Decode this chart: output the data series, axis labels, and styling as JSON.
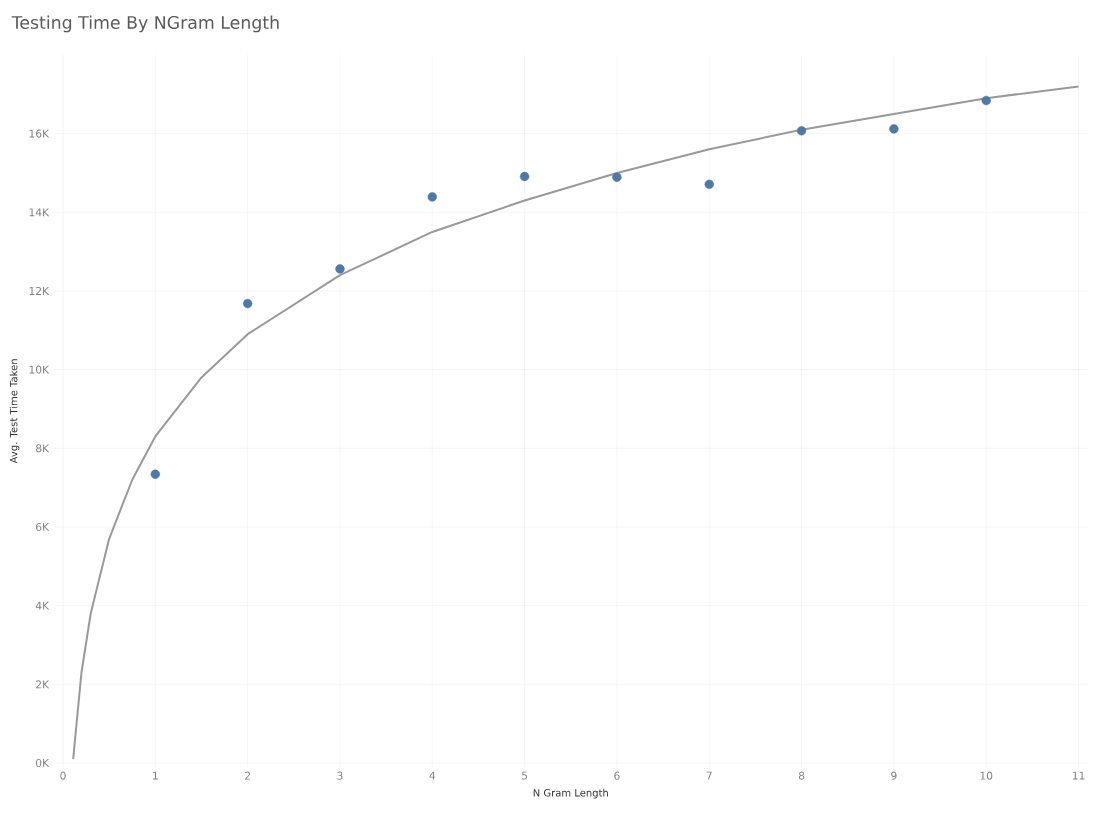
{
  "chart_data": {
    "type": "scatter",
    "title": "Testing Time By NGram Length",
    "xlabel": "N Gram Length",
    "ylabel": "Avg. Test Time Taken",
    "xlim": [
      -0.1,
      11.1
    ],
    "ylim": [
      -100,
      18000
    ],
    "xticks": [
      0,
      1,
      2,
      3,
      4,
      5,
      6,
      7,
      8,
      9,
      10,
      11
    ],
    "yticks": [
      {
        "value": 0,
        "label": "0K"
      },
      {
        "value": 2000,
        "label": "2K"
      },
      {
        "value": 4000,
        "label": "4K"
      },
      {
        "value": 6000,
        "label": "6K"
      },
      {
        "value": 8000,
        "label": "8K"
      },
      {
        "value": 10000,
        "label": "10K"
      },
      {
        "value": 12000,
        "label": "12K"
      },
      {
        "value": 14000,
        "label": "14K"
      },
      {
        "value": 16000,
        "label": "16K"
      }
    ],
    "grid": true,
    "series": [
      {
        "type": "line",
        "color": "#999999",
        "marker": "none",
        "x": [
          0.11,
          0.2,
          0.3,
          0.5,
          0.75,
          1,
          1.5,
          2,
          3,
          4,
          5,
          6,
          7,
          8,
          9,
          10,
          11
        ],
        "values": [
          100,
          2300,
          3800,
          5700,
          7200,
          8300,
          9800,
          10900,
          12400,
          13500,
          14300,
          15000,
          15600,
          16100,
          16500,
          16900,
          17200
        ]
      },
      {
        "color": "#4e79a7",
        "marker": "circle",
        "x": [
          1,
          2,
          3,
          4,
          5,
          6,
          7,
          8,
          9,
          10
        ],
        "values": [
          7340,
          11680,
          12560,
          14390,
          14910,
          14890,
          14710,
          16070,
          16120,
          16840
        ]
      }
    ]
  }
}
